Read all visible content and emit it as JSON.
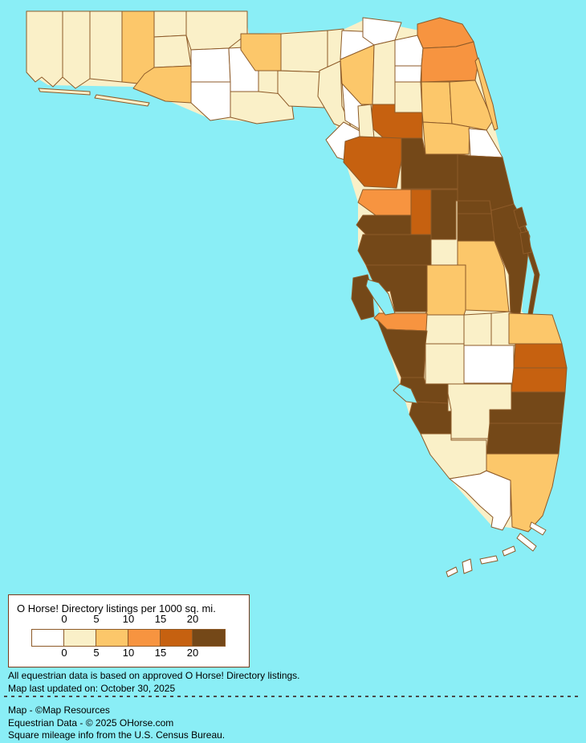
{
  "map": {
    "ocean_color": "#8aeef6",
    "border_color": "#8d5a28",
    "base_color": "#faf0c8",
    "counties": [
      {
        "name": "escambia",
        "bin": 1
      },
      {
        "name": "santa-rosa",
        "bin": 1
      },
      {
        "name": "okaloosa",
        "bin": 1
      },
      {
        "name": "walton",
        "bin": 2
      },
      {
        "name": "holmes",
        "bin": 1
      },
      {
        "name": "washington",
        "bin": 1
      },
      {
        "name": "bay",
        "bin": 2
      },
      {
        "name": "jackson",
        "bin": 1
      },
      {
        "name": "calhoun",
        "bin": 0
      },
      {
        "name": "gulf",
        "bin": 0
      },
      {
        "name": "liberty",
        "bin": 0
      },
      {
        "name": "franklin",
        "bin": 1
      },
      {
        "name": "gadsden",
        "bin": 2
      },
      {
        "name": "leon",
        "bin": 1
      },
      {
        "name": "wakulla",
        "bin": 1
      },
      {
        "name": "jefferson",
        "bin": 1
      },
      {
        "name": "madison",
        "bin": 0
      },
      {
        "name": "taylor",
        "bin": 1
      },
      {
        "name": "lafayette",
        "bin": 0
      },
      {
        "name": "dixie",
        "bin": 0
      },
      {
        "name": "hamilton",
        "bin": 0
      },
      {
        "name": "suwannee",
        "bin": 2
      },
      {
        "name": "columbia",
        "bin": 1
      },
      {
        "name": "baker",
        "bin": 0
      },
      {
        "name": "union",
        "bin": 0
      },
      {
        "name": "bradford",
        "bin": 1
      },
      {
        "name": "nassau",
        "bin": 3
      },
      {
        "name": "duval",
        "bin": 3
      },
      {
        "name": "clay",
        "bin": 2
      },
      {
        "name": "st-johns",
        "bin": 2
      },
      {
        "name": "atlantic-barrier",
        "bin": 2
      },
      {
        "name": "putnam",
        "bin": 2
      },
      {
        "name": "flagler",
        "bin": 0
      },
      {
        "name": "alachua",
        "bin": 4
      },
      {
        "name": "gilchrist",
        "bin": 1
      },
      {
        "name": "levy",
        "bin": 4
      },
      {
        "name": "marion",
        "bin": 5
      },
      {
        "name": "citrus",
        "bin": 3
      },
      {
        "name": "sumter",
        "bin": 4
      },
      {
        "name": "hernando",
        "bin": 5
      },
      {
        "name": "lake",
        "bin": 5
      },
      {
        "name": "volusia",
        "bin": 5
      },
      {
        "name": "seminole",
        "bin": 5
      },
      {
        "name": "orange",
        "bin": 5
      },
      {
        "name": "osceola",
        "bin": 2
      },
      {
        "name": "brevard",
        "bin": 5
      },
      {
        "name": "brevard-barrier",
        "bin": 5
      },
      {
        "name": "merritt-island",
        "bin": 5
      },
      {
        "name": "pasco",
        "bin": 5
      },
      {
        "name": "hillsborough",
        "bin": 5
      },
      {
        "name": "pinellas",
        "bin": 5
      },
      {
        "name": "polk",
        "bin": 2
      },
      {
        "name": "manatee",
        "bin": 3
      },
      {
        "name": "hardee",
        "bin": 1
      },
      {
        "name": "desoto",
        "bin": 1
      },
      {
        "name": "highlands",
        "bin": 1
      },
      {
        "name": "okeechobee",
        "bin": 1
      },
      {
        "name": "glades",
        "bin": 0
      },
      {
        "name": "sarasota",
        "bin": 5
      },
      {
        "name": "charlotte",
        "bin": 5
      },
      {
        "name": "hendry",
        "bin": 1
      },
      {
        "name": "lee",
        "bin": 5
      },
      {
        "name": "collier",
        "bin": 1
      },
      {
        "name": "monroe",
        "bin": 0
      },
      {
        "name": "miami-dade",
        "bin": 2
      },
      {
        "name": "indian-river",
        "bin": 2
      },
      {
        "name": "st-lucie",
        "bin": 4
      },
      {
        "name": "martin",
        "bin": 4
      },
      {
        "name": "palm-beach",
        "bin": 5
      },
      {
        "name": "broward",
        "bin": 5
      },
      {
        "name": "gulf-barrier-islands",
        "bin": 1
      },
      {
        "name": "monroe-keys",
        "bin": 0
      },
      {
        "name": "upper-keys-barrier",
        "bin": 0
      }
    ]
  },
  "legend": {
    "title": "O Horse! Directory listings per 1000 sq. mi.",
    "tick_labels": [
      "0",
      "5",
      "10",
      "15",
      "20"
    ],
    "bin_colors": [
      "#ffffff",
      "#faf0c8",
      "#fcc76a",
      "#f79440",
      "#c66110",
      "#744818"
    ]
  },
  "notes": {
    "line1": "All equestrian data is based on approved O Horse! Directory listings.",
    "line2": "Map last updated on: October 30, 2025"
  },
  "credits": {
    "map": "Map - ©Map Resources",
    "data": "Equestrian Data - © 2025 OHorse.com",
    "mileage": "Square mileage info from the U.S. Census Bureau."
  }
}
